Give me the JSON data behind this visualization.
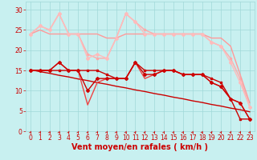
{
  "background_color": "#c8f0f0",
  "grid_color": "#a0d8d8",
  "xlabel": "Vent moyen/en rafales ( km/h )",
  "xlabel_color": "#cc0000",
  "xlabel_fontsize": 7,
  "tick_color": "#cc0000",
  "tick_fontsize": 5.5,
  "ylim": [
    0,
    32
  ],
  "xlim": [
    -0.5,
    23.5
  ],
  "yticks": [
    0,
    5,
    10,
    15,
    20,
    25,
    30
  ],
  "xticks": [
    0,
    1,
    2,
    3,
    4,
    5,
    6,
    7,
    8,
    9,
    10,
    11,
    12,
    13,
    14,
    15,
    16,
    17,
    18,
    19,
    20,
    21,
    22,
    23
  ],
  "series": [
    {
      "label": "line_diagonal",
      "x": [
        0,
        1,
        2,
        3,
        4,
        5,
        6,
        7,
        8,
        9,
        10,
        11,
        12,
        13,
        14,
        15,
        16,
        17,
        18,
        19,
        20,
        21,
        22,
        23
      ],
      "y": [
        15.2,
        14.7,
        14.3,
        13.8,
        13.4,
        12.9,
        12.5,
        12.0,
        11.6,
        11.1,
        10.7,
        10.2,
        9.8,
        9.3,
        8.9,
        8.4,
        8.0,
        7.5,
        7.1,
        6.6,
        6.2,
        5.7,
        5.3,
        4.8
      ],
      "color": "#cc0000",
      "linewidth": 1.0,
      "marker": null,
      "markersize": 0,
      "zorder": 3
    },
    {
      "label": "moyen_square",
      "x": [
        0,
        1,
        2,
        3,
        4,
        5,
        6,
        7,
        8,
        9,
        10,
        11,
        12,
        13,
        14,
        15,
        16,
        17,
        18,
        19,
        20,
        21,
        22,
        23
      ],
      "y": [
        15,
        15,
        15,
        15,
        15,
        15,
        15,
        15,
        14,
        13,
        13,
        17,
        15,
        15,
        15,
        15,
        14,
        14,
        14,
        13,
        12,
        8,
        3,
        3
      ],
      "color": "#cc0000",
      "linewidth": 1.0,
      "marker": "s",
      "markersize": 2.0,
      "zorder": 5
    },
    {
      "label": "rafales_jagged",
      "x": [
        0,
        1,
        2,
        3,
        4,
        5,
        6,
        7,
        8,
        9,
        10,
        11,
        12,
        13,
        14,
        15,
        16,
        17,
        18,
        19,
        20,
        21,
        22,
        23
      ],
      "y": [
        15,
        15,
        15,
        17,
        15,
        15,
        10,
        13,
        13,
        13,
        13,
        17,
        14,
        14,
        15,
        15,
        14,
        14,
        14,
        12,
        11,
        8,
        7,
        3
      ],
      "color": "#cc0000",
      "linewidth": 1.0,
      "marker": "D",
      "markersize": 2.0,
      "zorder": 5
    },
    {
      "label": "rafales_deep",
      "x": [
        0,
        1,
        2,
        3,
        4,
        5,
        6,
        7,
        8,
        9,
        10,
        11,
        12,
        13,
        14,
        15,
        16,
        17,
        18,
        19,
        20,
        21,
        22,
        23
      ],
      "y": [
        15,
        15,
        15,
        17,
        15,
        15,
        6.5,
        12,
        13,
        13,
        13,
        17,
        13,
        14,
        15,
        15,
        14,
        14,
        14,
        12,
        11,
        8,
        7,
        3
      ],
      "color": "#ee4444",
      "linewidth": 1.0,
      "marker": null,
      "markersize": 0,
      "zorder": 4
    },
    {
      "label": "rafales_light_jagged",
      "x": [
        0,
        1,
        2,
        3,
        4,
        5,
        6,
        7,
        8,
        9,
        10,
        11,
        12,
        13,
        14,
        15,
        16,
        17,
        18,
        19,
        20,
        21,
        22,
        23
      ],
      "y": [
        24,
        26,
        25,
        29,
        24,
        24,
        19,
        18,
        18,
        23,
        29,
        27,
        25,
        24,
        24,
        24,
        24,
        24,
        24,
        22,
        21,
        18,
        13,
        6
      ],
      "color": "#ffaaaa",
      "linewidth": 1.0,
      "marker": "s",
      "markersize": 2.0,
      "zorder": 2
    },
    {
      "label": "rafales_light_smooth",
      "x": [
        0,
        1,
        2,
        3,
        4,
        5,
        6,
        7,
        8,
        9,
        10,
        11,
        12,
        13,
        14,
        15,
        16,
        17,
        18,
        19,
        20,
        21,
        22,
        23
      ],
      "y": [
        24,
        25,
        24,
        24,
        24,
        24,
        24,
        24,
        23,
        23,
        24,
        24,
        24,
        24,
        24,
        24,
        24,
        24,
        24,
        23,
        23,
        21,
        14,
        7
      ],
      "color": "#ff9999",
      "linewidth": 1.0,
      "marker": null,
      "markersize": 0,
      "zorder": 2
    },
    {
      "label": "rafales_medium",
      "x": [
        0,
        1,
        2,
        3,
        4,
        5,
        6,
        7,
        8,
        9,
        10,
        11,
        12,
        13,
        14,
        15,
        16,
        17,
        18,
        19,
        20,
        21,
        22,
        23
      ],
      "y": [
        24,
        26,
        25,
        29,
        24,
        24,
        18,
        19,
        18,
        23,
        29,
        27,
        24,
        24,
        24,
        24,
        24,
        24,
        24,
        22,
        21,
        17,
        12,
        6
      ],
      "color": "#ffbbbb",
      "linewidth": 1.0,
      "marker": "D",
      "markersize": 2.0,
      "zorder": 2
    }
  ],
  "arrow_color": "#cc0000"
}
